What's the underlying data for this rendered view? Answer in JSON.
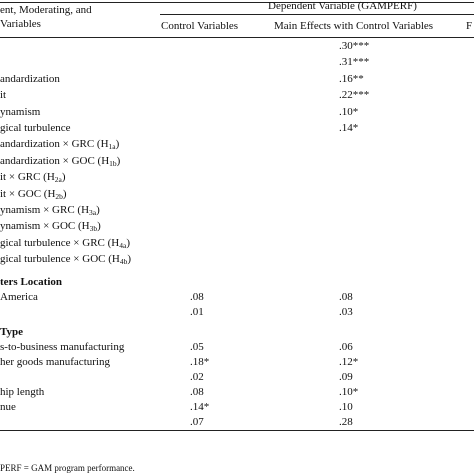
{
  "header": {
    "stub_line1": "ent, Moderating, and",
    "stub_line2": "Variables",
    "dependent_variable": "Dependent Variable (GAMPERF)",
    "col_control": "Control Variables",
    "col_main": "Main Effects with Control Variables",
    "col_partial": "F"
  },
  "rows": [
    {
      "label": "",
      "sub": "",
      "control": "",
      "main": ".30***"
    },
    {
      "label": "",
      "sub": "",
      "control": "",
      "main": ".31***"
    },
    {
      "label": "andardization",
      "sub": "",
      "control": "",
      "main": ".16**"
    },
    {
      "label": "it",
      "sub": "",
      "control": "",
      "main": ".22***"
    },
    {
      "label": "ynamism",
      "sub": "",
      "control": "",
      "main": ".10*"
    },
    {
      "label": "gical turbulence",
      "sub": "",
      "control": "",
      "main": ".14*"
    },
    {
      "label": "andardization × GRC (H",
      "sub": "1a",
      "control": "",
      "main": ""
    },
    {
      "label": "andardization × GOC (H",
      "sub": "1b",
      "control": "",
      "main": ""
    },
    {
      "label": "it × GRC (H",
      "sub": "2a",
      "control": "",
      "main": ""
    },
    {
      "label": "it × GOC (H",
      "sub": "2b",
      "control": "",
      "main": ""
    },
    {
      "label": "ynamism × GRC (H",
      "sub": "3a",
      "control": "",
      "main": ""
    },
    {
      "label": "ynamism × GOC (H",
      "sub": "3b",
      "control": "",
      "main": ""
    },
    {
      "label": "gical turbulence × GRC (H",
      "sub": "4a",
      "control": "",
      "main": ""
    },
    {
      "label": "gical turbulence × GOC (H",
      "sub": "4b",
      "control": "",
      "main": ""
    }
  ],
  "section1": {
    "title": "ters Location",
    "rows": [
      {
        "label": "America",
        "control": ".08",
        "main": ".08"
      },
      {
        "label": "",
        "control": ".01",
        "main": ".03"
      }
    ]
  },
  "section2": {
    "title": "Type",
    "rows": [
      {
        "label": "s-to-business manufacturing",
        "control": ".05",
        "main": ".06"
      },
      {
        "label": "her goods manufacturing",
        "control": ".18*",
        "main": ".12*"
      },
      {
        "label": "",
        "control": ".02",
        "main": ".09"
      },
      {
        "label": "hip length",
        "control": ".08",
        "main": ".10*"
      },
      {
        "label": "nue",
        "control": ".14*",
        "main": ".10"
      },
      {
        "label": "",
        "control": ".07",
        "main": ".28"
      }
    ]
  },
  "footnote": "PERF = GAM program performance."
}
